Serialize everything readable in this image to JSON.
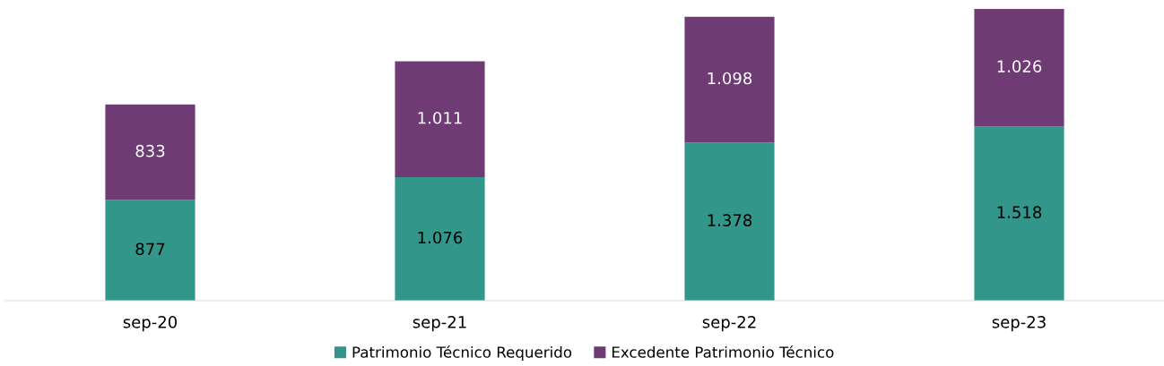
{
  "chart_data": {
    "type": "bar",
    "stacked": true,
    "categories": [
      "sep-20",
      "sep-21",
      "sep-22",
      "sep-23"
    ],
    "series": [
      {
        "name": "Patrimonio Técnico Requerido",
        "color": "#33968a",
        "values": [
          877,
          1076,
          1378,
          1518
        ],
        "value_labels": [
          "877",
          "1.076",
          "1.378",
          "1.518"
        ]
      },
      {
        "name": "Excedente Patrimonio Técnico",
        "color": "#6e3b75",
        "values": [
          833,
          1011,
          1098,
          1026
        ],
        "value_labels": [
          "833",
          "1.011",
          "1.098",
          "1.026"
        ]
      }
    ],
    "legend": "bottom",
    "grid": false
  }
}
